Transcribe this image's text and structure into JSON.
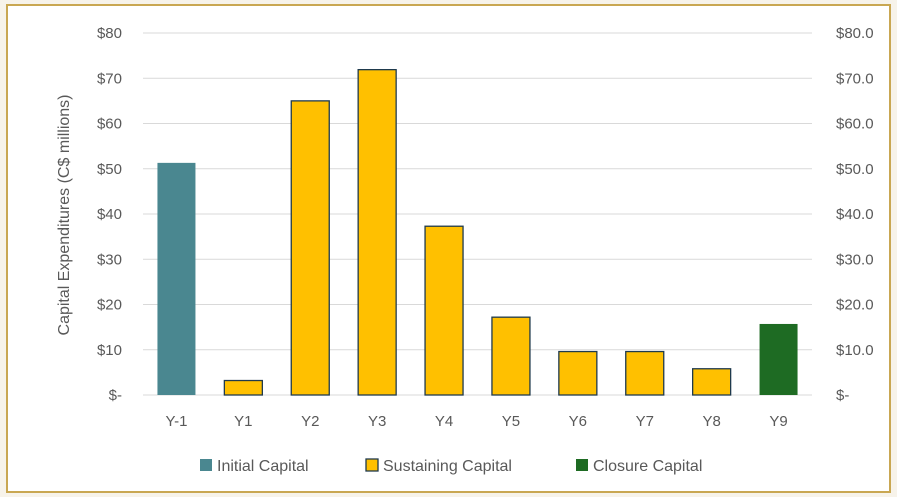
{
  "chart_data": {
    "type": "bar",
    "categories": [
      "Y-1",
      "Y1",
      "Y2",
      "Y3",
      "Y4",
      "Y5",
      "Y6",
      "Y7",
      "Y8",
      "Y9"
    ],
    "series": [
      {
        "name": "Initial Capital",
        "color": "#4a8790",
        "values": [
          51.3,
          0,
          0,
          0,
          0,
          0,
          0,
          0,
          0,
          0
        ]
      },
      {
        "name": "Sustaining Capital",
        "color": "#ffc000",
        "values": [
          0,
          3.2,
          65.0,
          71.9,
          37.3,
          17.2,
          9.6,
          9.6,
          5.8,
          0
        ]
      },
      {
        "name": "Closure Capital",
        "color": "#1e6b23",
        "values": [
          0,
          0,
          0,
          0,
          0,
          0,
          0,
          0,
          0,
          15.7
        ]
      }
    ],
    "ylabel": "Capital Expenditures (C$ millions)",
    "ylim": [
      0,
      80
    ],
    "y_ticks_left": [
      "$-",
      "$10",
      "$20",
      "$30",
      "$40",
      "$50",
      "$60",
      "$70",
      "$80"
    ],
    "y_ticks_right": [
      "$-",
      "$10.0",
      "$20.0",
      "$30.0",
      "$40.0",
      "$50.0",
      "$60.0",
      "$70.0",
      "$80.0"
    ],
    "grid": true,
    "legend": "bottom"
  }
}
